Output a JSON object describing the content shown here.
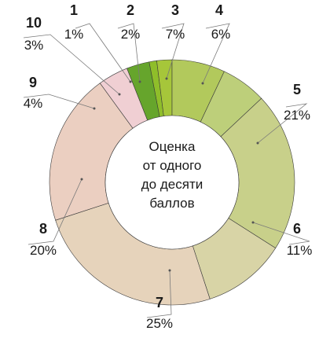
{
  "chart_data": {
    "type": "pie",
    "center_text": [
      "Оценка",
      "от одного",
      "до десяти",
      "баллов"
    ],
    "slices": [
      {
        "category": "1",
        "value": 1,
        "label": "1%",
        "color": "#8fbe2a"
      },
      {
        "category": "2",
        "value": 2,
        "label": "2%",
        "color": "#a6c63a"
      },
      {
        "category": "3",
        "value": 7,
        "label": "7%",
        "color": "#b2c95c"
      },
      {
        "category": "4",
        "value": 6,
        "label": "6%",
        "color": "#bdcf7a"
      },
      {
        "category": "5",
        "value": 21,
        "label": "21%",
        "color": "#c8d08a"
      },
      {
        "category": "6",
        "value": 11,
        "label": "11%",
        "color": "#d8d4a6"
      },
      {
        "category": "7",
        "value": 25,
        "label": "25%",
        "color": "#e6d3bb"
      },
      {
        "category": "8",
        "value": 20,
        "label": "20%",
        "color": "#ebcfc1"
      },
      {
        "category": "9",
        "value": 4,
        "label": "4%",
        "color": "#f0cfd3"
      },
      {
        "category": "10",
        "value": 3,
        "label": "3%",
        "color": "#66a52c"
      }
    ]
  }
}
